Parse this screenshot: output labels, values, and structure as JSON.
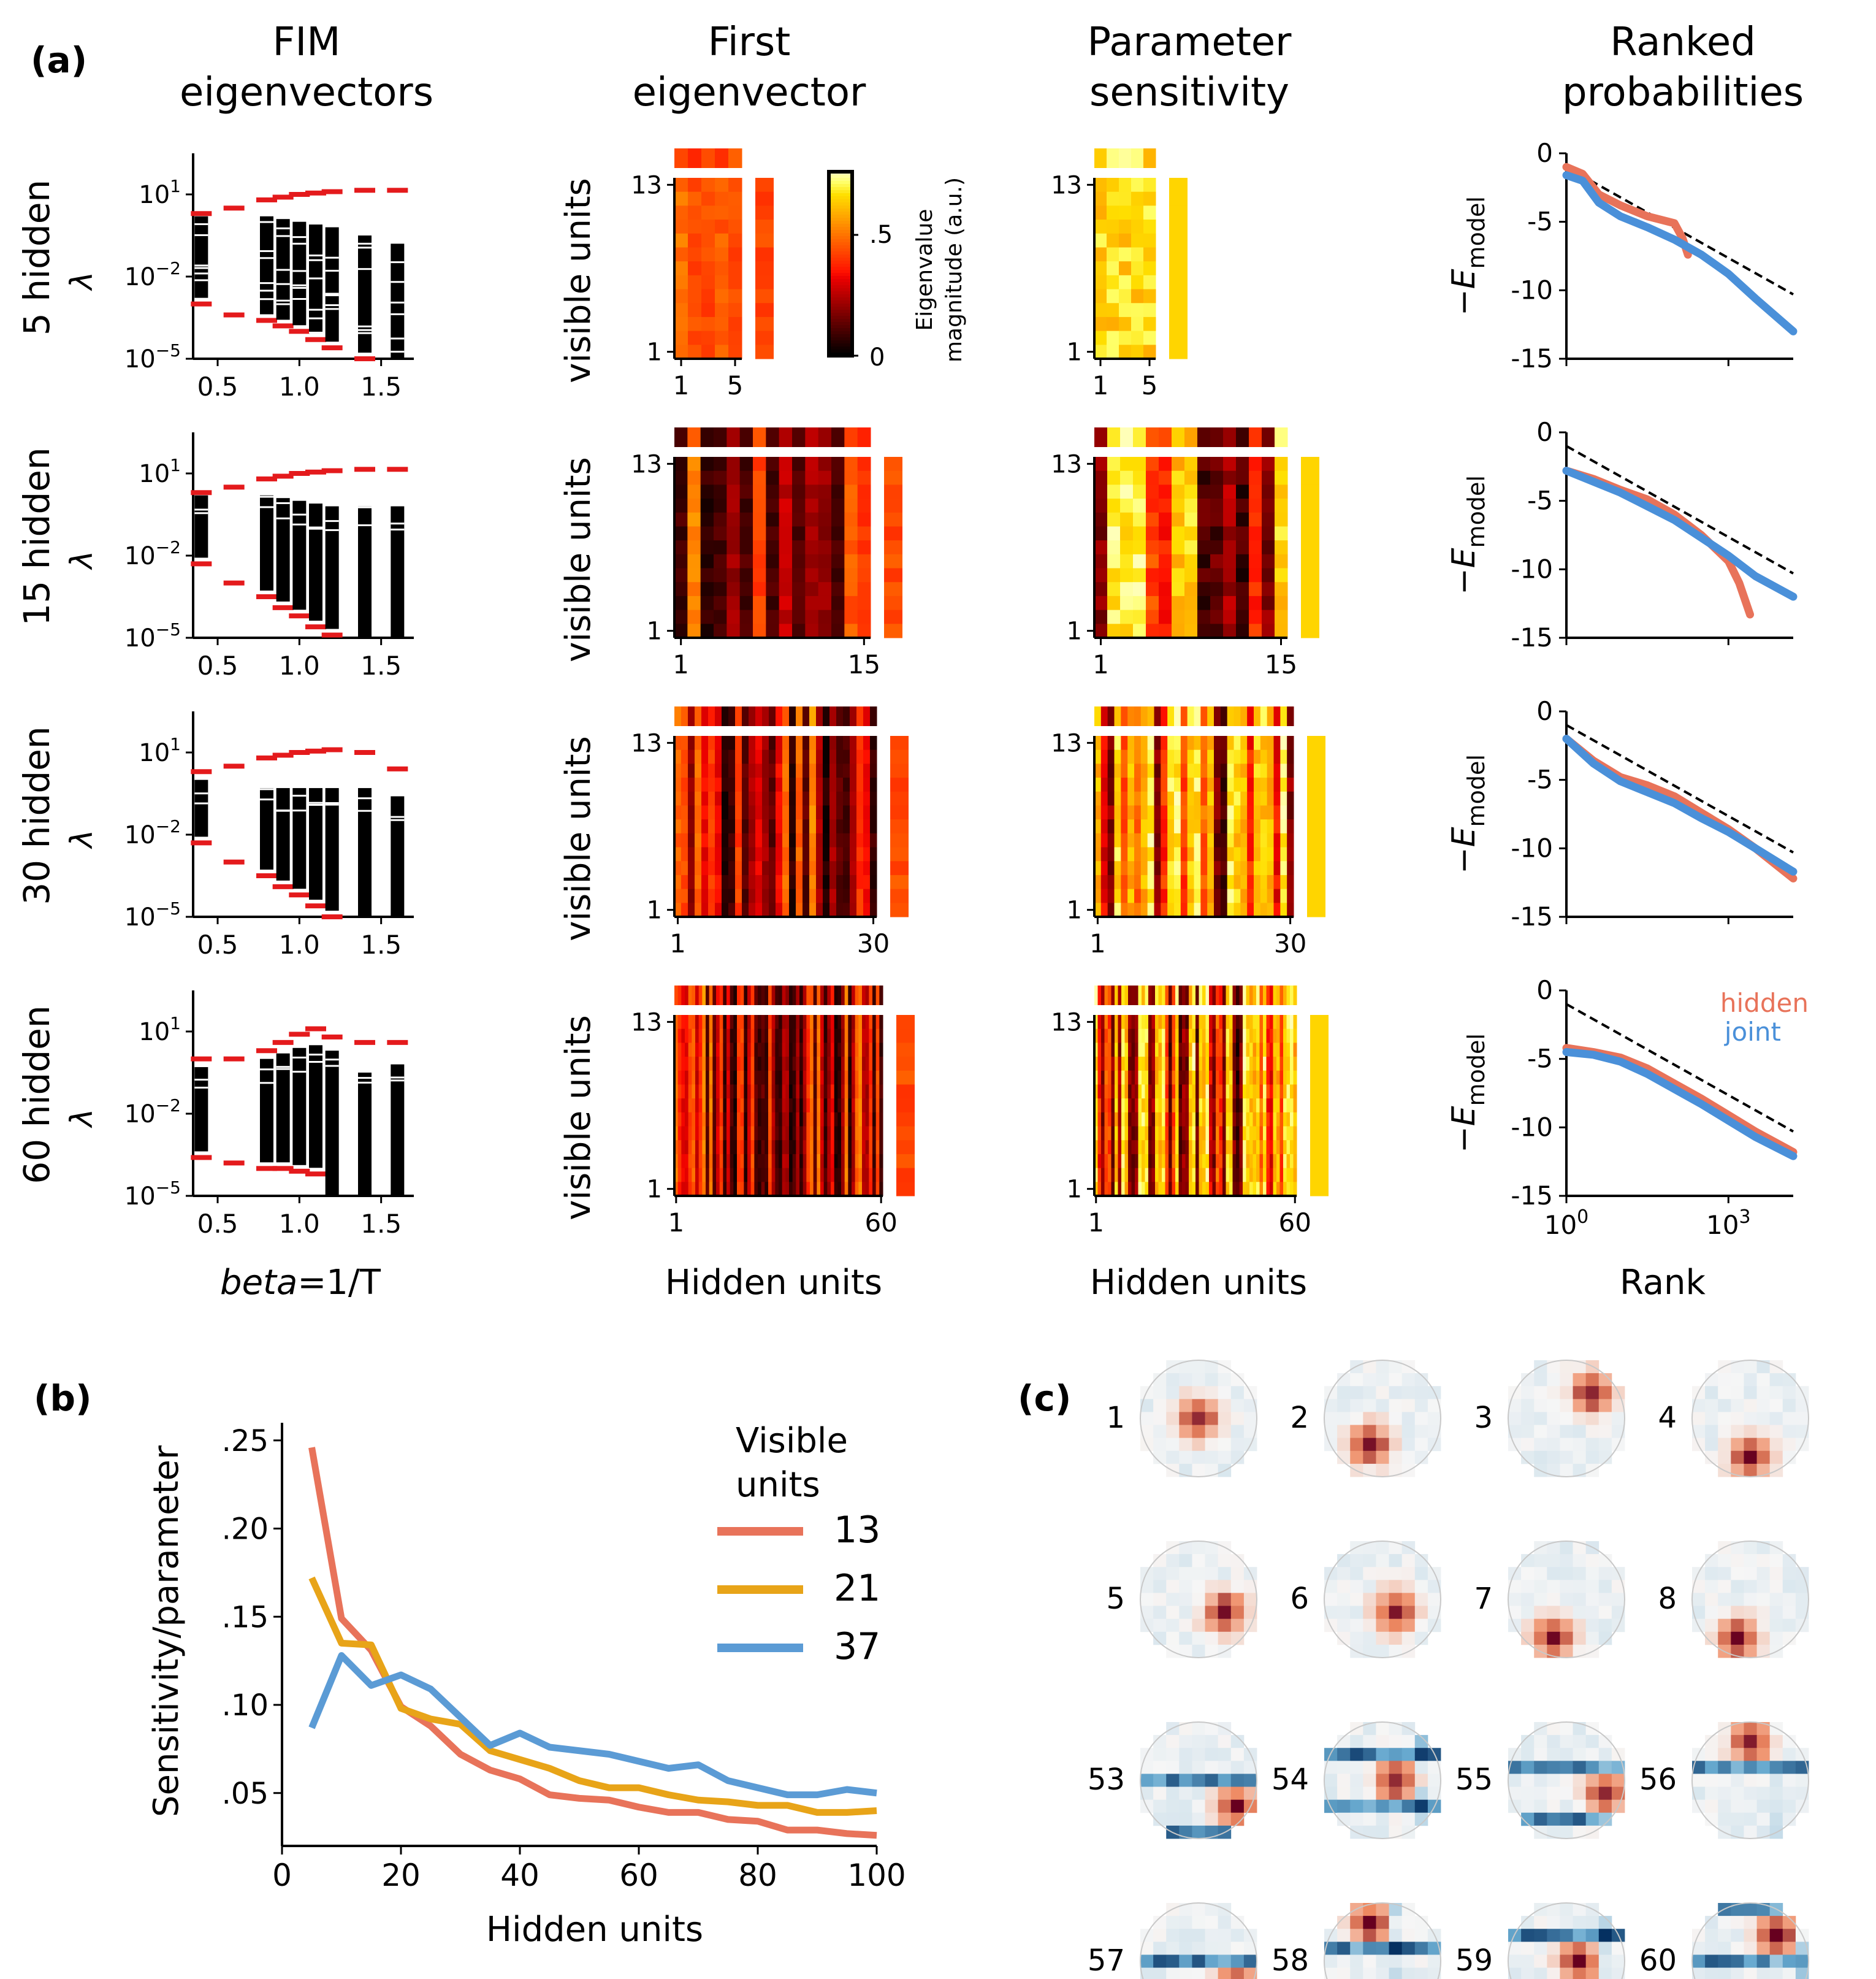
{
  "panel_labels": {
    "a": "(a)",
    "b": "(b)",
    "c": "(c)"
  },
  "column_titles": [
    {
      "line1": "FIM",
      "line2": "eigenvectors"
    },
    {
      "line1": "First",
      "line2": "eigenvector"
    },
    {
      "line1": "Parameter",
      "line2": "sensitivity"
    },
    {
      "line1": "Ranked",
      "line2": "probabilities"
    }
  ],
  "row_labels": [
    "5 hidden",
    "15 hidden",
    "30 hidden",
    "60 hidden"
  ],
  "colorbar": {
    "label_line1": "Eigenvalue",
    "label_line2": "magnitude (a.u.)",
    "ticks": [
      ".5",
      "0"
    ]
  },
  "colors": {
    "red": "#e41a1c",
    "hidden": "#e8735a",
    "joint": "#4a90d9",
    "orange": "#f5a623",
    "blue": "#5b9bd5"
  },
  "chart_data": [
    {
      "id": "fim-eigenvalues",
      "type": "scatter",
      "title": "FIM eigenvectors",
      "xlabel_italic": "beta",
      "xlabel_rest": "=1/T",
      "ylabel": "λ",
      "x_ticks": [
        "0.5",
        "1.0",
        "1.5"
      ],
      "y_ticks": [
        {
          "base": "10",
          "exp": "1"
        },
        {
          "base": "10",
          "exp": "−2"
        },
        {
          "base": "10",
          "exp": "−5"
        }
      ],
      "xlim": [
        0.35,
        1.7
      ],
      "ylim_log10": [
        -5,
        2.5
      ],
      "beta": [
        0.4,
        0.6,
        0.8,
        0.9,
        1.0,
        1.1,
        1.2,
        1.4,
        1.6
      ],
      "rows": [
        {
          "max_log": [
            0.3,
            0.5,
            0.8,
            0.9,
            1.0,
            1.05,
            1.1,
            1.15,
            1.15
          ],
          "min_log": [
            -3.0,
            -3.4,
            -3.6,
            -3.8,
            -4.0,
            -4.3,
            -4.6,
            -5.0,
            null
          ],
          "bar_top": [
            0.2,
            null,
            0.2,
            0.1,
            0.0,
            -0.1,
            -0.2,
            -0.5,
            -0.8
          ]
        },
        {
          "max_log": [
            0.3,
            0.5,
            0.8,
            0.9,
            1.0,
            1.05,
            1.1,
            1.15,
            1.15
          ],
          "min_log": [
            -2.3,
            -3.0,
            -3.5,
            -3.9,
            -4.2,
            -4.6,
            -4.9,
            null,
            null
          ],
          "bar_top": [
            0.2,
            null,
            0.2,
            0.1,
            0.0,
            -0.1,
            -0.2,
            -0.2,
            -0.2
          ]
        },
        {
          "max_log": [
            0.3,
            0.5,
            0.8,
            0.9,
            1.0,
            1.05,
            1.1,
            1.0,
            0.4
          ],
          "min_log": [
            -2.3,
            -3.0,
            -3.5,
            -3.9,
            -4.2,
            -4.6,
            -5.0,
            null,
            null
          ],
          "bar_top": [
            0.0,
            null,
            -0.3,
            -0.3,
            -0.3,
            -0.3,
            -0.3,
            -0.3,
            -0.6
          ]
        },
        {
          "max_log": [
            0.0,
            0.0,
            0.3,
            0.6,
            0.9,
            1.1,
            0.8,
            0.6,
            0.6
          ],
          "min_log": [
            -3.6,
            -3.8,
            -4.0,
            -4.0,
            -4.1,
            -4.2,
            null,
            null,
            null
          ],
          "bar_top": [
            -0.3,
            null,
            0.0,
            0.2,
            0.4,
            0.5,
            0.3,
            -0.5,
            -0.2
          ]
        }
      ]
    },
    {
      "id": "first-eigenvector",
      "type": "heatmap",
      "title": "First eigenvector",
      "ylabel": "visible units",
      "xlabel": "Hidden units",
      "y_ticks": [
        "13",
        "1"
      ],
      "hidden_counts": [
        5,
        15,
        30,
        60
      ],
      "x_ticks": [
        [
          "1",
          "5"
        ],
        [
          "1",
          "15"
        ],
        [
          "1",
          "30"
        ],
        [
          "1",
          "60"
        ]
      ]
    },
    {
      "id": "parameter-sensitivity",
      "type": "heatmap",
      "title": "Parameter sensitivity",
      "xlabel": "Hidden units",
      "y_ticks": [
        "13",
        "1"
      ],
      "hidden_counts": [
        5,
        15,
        30,
        60
      ],
      "x_ticks": [
        [
          "1",
          "5"
        ],
        [
          "1",
          "15"
        ],
        [
          "1",
          "30"
        ],
        [
          "1",
          "60"
        ]
      ]
    },
    {
      "id": "ranked-probabilities",
      "type": "line",
      "title": "Ranked probabilities",
      "ylabel_main": "−E",
      "ylabel_sub": "model",
      "xlabel": "Rank",
      "x_ticks": [
        {
          "base": "10",
          "exp": "0"
        },
        {
          "base": "10",
          "exp": "3"
        }
      ],
      "y_ticks": [
        "0",
        "-5",
        "-10",
        "-15"
      ],
      "xlim_log10": [
        0,
        4.2
      ],
      "ylim": [
        -15,
        0
      ],
      "legend": [
        {
          "name": "hidden"
        },
        {
          "name": "joint"
        }
      ],
      "rows": [
        {
          "dashed": [
            [
              0,
              -1.0
            ],
            [
              4.2,
              -10.3
            ]
          ],
          "hidden": [
            [
              0,
              -1.0
            ],
            [
              0.3,
              -1.5
            ],
            [
              0.6,
              -3.0
            ],
            [
              1.0,
              -3.8
            ],
            [
              1.5,
              -4.6
            ],
            [
              2.0,
              -5.1
            ],
            [
              2.15,
              -6.2
            ],
            [
              2.25,
              -7.4
            ]
          ],
          "joint": [
            [
              0,
              -1.6
            ],
            [
              0.3,
              -2.0
            ],
            [
              0.6,
              -3.6
            ],
            [
              1.0,
              -4.6
            ],
            [
              1.5,
              -5.4
            ],
            [
              2.0,
              -6.3
            ],
            [
              2.5,
              -7.4
            ],
            [
              3.0,
              -8.8
            ],
            [
              3.5,
              -10.6
            ],
            [
              4.2,
              -13.0
            ]
          ]
        },
        {
          "dashed": [
            [
              0,
              -1.0
            ],
            [
              4.2,
              -10.3
            ]
          ],
          "hidden": [
            [
              0,
              -2.8
            ],
            [
              0.5,
              -3.4
            ],
            [
              1.0,
              -4.2
            ],
            [
              1.5,
              -4.9
            ],
            [
              2.0,
              -6.0
            ],
            [
              2.5,
              -7.5
            ],
            [
              3.0,
              -9.4
            ],
            [
              3.2,
              -11.0
            ],
            [
              3.4,
              -13.3
            ]
          ],
          "joint": [
            [
              0,
              -2.8
            ],
            [
              0.5,
              -3.6
            ],
            [
              1.0,
              -4.4
            ],
            [
              1.5,
              -5.4
            ],
            [
              2.0,
              -6.4
            ],
            [
              2.5,
              -7.7
            ],
            [
              3.0,
              -9.0
            ],
            [
              3.5,
              -10.5
            ],
            [
              4.2,
              -12.0
            ]
          ]
        },
        {
          "dashed": [
            [
              0,
              -1.0
            ],
            [
              4.2,
              -10.3
            ]
          ],
          "hidden": [
            [
              0,
              -2.0
            ],
            [
              0.5,
              -3.6
            ],
            [
              1.0,
              -4.8
            ],
            [
              1.5,
              -5.4
            ],
            [
              2.0,
              -6.2
            ],
            [
              2.5,
              -7.4
            ],
            [
              3.0,
              -8.6
            ],
            [
              3.5,
              -10.0
            ],
            [
              4.2,
              -12.2
            ]
          ],
          "joint": [
            [
              0,
              -2.0
            ],
            [
              0.5,
              -3.8
            ],
            [
              1.0,
              -5.1
            ],
            [
              1.5,
              -5.9
            ],
            [
              2.0,
              -6.7
            ],
            [
              2.5,
              -7.8
            ],
            [
              3.0,
              -8.8
            ],
            [
              3.5,
              -10.0
            ],
            [
              4.2,
              -11.7
            ]
          ]
        },
        {
          "dashed": [
            [
              0,
              -1.0
            ],
            [
              4.2,
              -10.3
            ]
          ],
          "hidden": [
            [
              0,
              -4.2
            ],
            [
              0.5,
              -4.5
            ],
            [
              1.0,
              -4.9
            ],
            [
              1.5,
              -5.7
            ],
            [
              2.0,
              -6.8
            ],
            [
              2.5,
              -7.9
            ],
            [
              3.0,
              -9.1
            ],
            [
              3.5,
              -10.3
            ],
            [
              4.2,
              -11.8
            ]
          ],
          "joint": [
            [
              0,
              -4.5
            ],
            [
              0.5,
              -4.7
            ],
            [
              1.0,
              -5.2
            ],
            [
              1.5,
              -6.1
            ],
            [
              2.0,
              -7.2
            ],
            [
              2.5,
              -8.3
            ],
            [
              3.0,
              -9.5
            ],
            [
              3.5,
              -10.7
            ],
            [
              4.2,
              -12.1
            ]
          ]
        }
      ]
    },
    {
      "id": "sensitivity-per-parameter",
      "type": "line",
      "title": "",
      "xlabel": "Hidden units",
      "ylabel": "Sensitivity/parameter",
      "xlim": [
        0,
        100
      ],
      "ylim": [
        0.02,
        0.26
      ],
      "x_ticks": [
        "0",
        "20",
        "40",
        "60",
        "80",
        "100"
      ],
      "y_ticks": [
        ".25",
        ".20",
        ".15",
        ".10",
        ".05"
      ],
      "legend_title_line1": "Visible",
      "legend_title_line2": "units",
      "x": [
        5,
        10,
        15,
        20,
        25,
        30,
        35,
        40,
        45,
        50,
        55,
        60,
        65,
        70,
        75,
        80,
        85,
        90,
        95,
        100
      ],
      "series": [
        {
          "name": "13",
          "color": "#e8735a",
          "values": [
            0.246,
            0.149,
            0.131,
            0.099,
            0.088,
            0.072,
            0.063,
            0.058,
            0.049,
            0.047,
            0.046,
            0.042,
            0.039,
            0.039,
            0.035,
            0.034,
            0.029,
            0.029,
            0.027,
            0.026
          ]
        },
        {
          "name": "21",
          "color": "#e8a418",
          "values": [
            0.172,
            0.135,
            0.134,
            0.098,
            0.092,
            0.089,
            0.074,
            0.069,
            0.064,
            0.057,
            0.053,
            0.053,
            0.049,
            0.046,
            0.045,
            0.043,
            0.043,
            0.039,
            0.039,
            0.04
          ]
        },
        {
          "name": "37",
          "color": "#5b9bd5",
          "values": [
            0.087,
            0.128,
            0.111,
            0.117,
            0.109,
            0.093,
            0.077,
            0.084,
            0.076,
            0.074,
            0.072,
            0.068,
            0.064,
            0.066,
            0.057,
            0.053,
            0.049,
            0.049,
            0.052,
            0.05
          ]
        }
      ]
    },
    {
      "id": "receptive-fields",
      "type": "heatmap",
      "title": "",
      "tile_labels": [
        "1",
        "2",
        "3",
        "4",
        "5",
        "6",
        "7",
        "8",
        "53",
        "54",
        "55",
        "56",
        "57",
        "58",
        "59",
        "60"
      ]
    }
  ]
}
